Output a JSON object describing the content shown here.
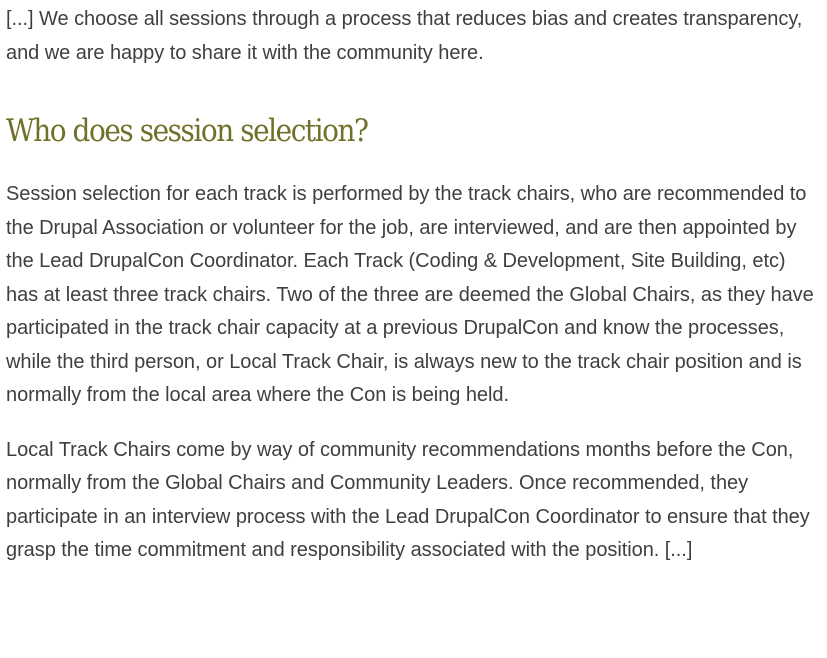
{
  "article": {
    "intro": "[...] We choose all sessions through a process that reduces bias and creates transparency, and we are happy to share it with the community here.",
    "heading": "Who does session selection?",
    "paragraph_1": "Session selection for each track is performed by the track chairs, who are recommended to the Drupal Association or volunteer for the job, are interviewed, and are then appointed by the Lead DrupalCon Coordinator. Each Track (Coding & Development, Site Building, etc) has at least three track chairs. Two of the three are deemed the Global Chairs, as they have participated in the track chair capacity at a previous DrupalCon and know the processes, while the third person, or Local Track Chair, is always new to the track chair position and is normally from the local area where the Con is being held.",
    "paragraph_2": "Local Track Chairs come by way of community recommendations months before the Con, normally from the Global Chairs and Community Leaders. Once recommended, they participate in an interview process with the Lead DrupalCon Coordinator to ensure that they grasp the time commitment and responsibility associated with the position. [...]"
  }
}
